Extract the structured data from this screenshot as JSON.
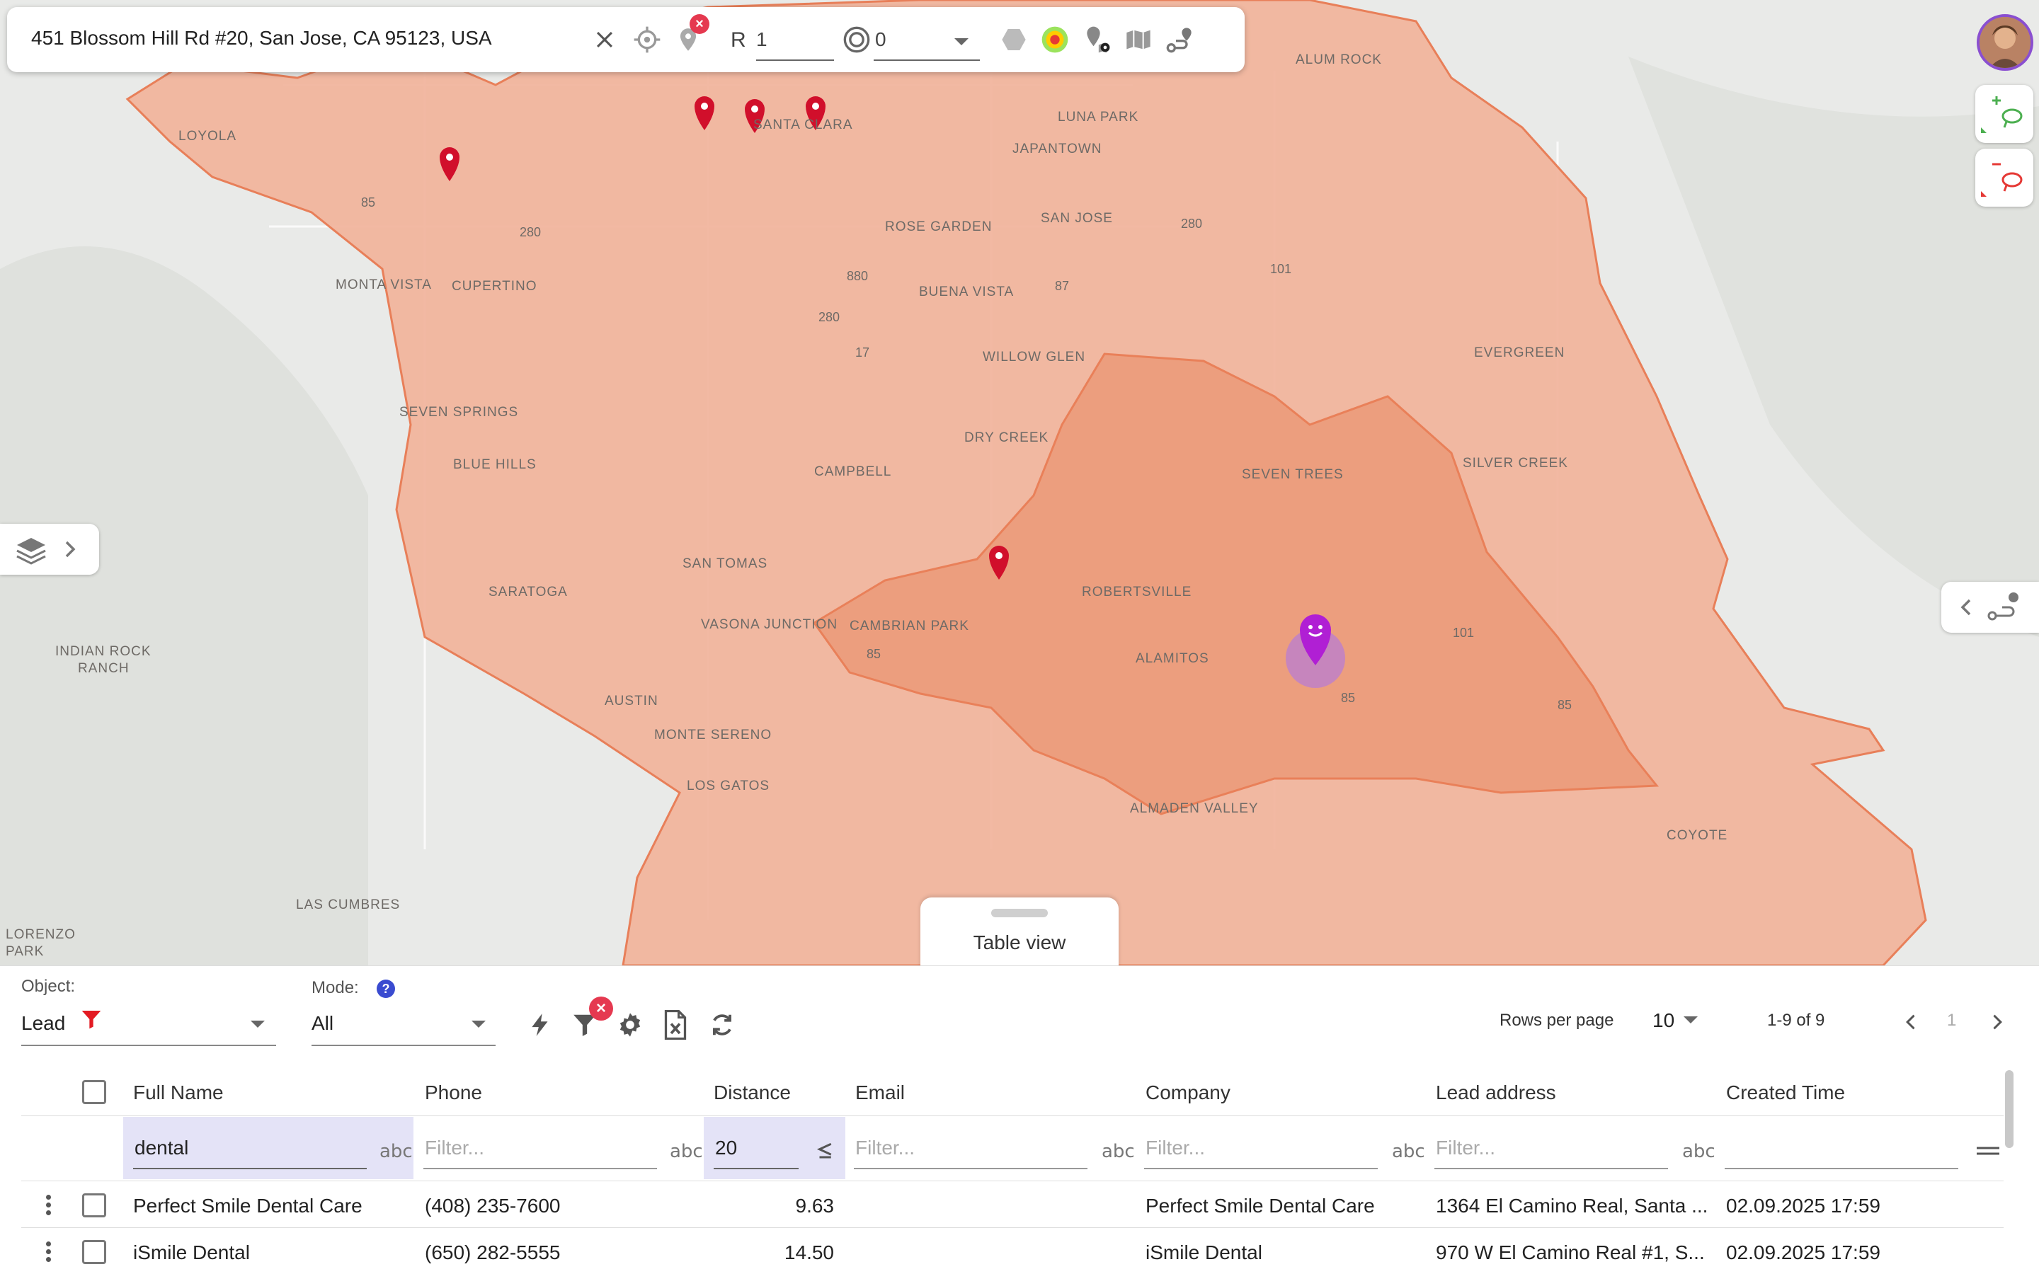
{
  "search": {
    "address": "451 Blossom Hill Rd #20, San Jose, CA 95123, USA",
    "radius_label": "R",
    "radius_value": "1",
    "ring_value": "0"
  },
  "map": {
    "places": [
      {
        "name": "ALUM ROCK"
      },
      {
        "name": "LUNA PARK"
      },
      {
        "name": "JAPANTOWN"
      },
      {
        "name": "LOYOLA"
      },
      {
        "name": "SANTA CLARA"
      },
      {
        "name": "ROSE GARDEN"
      },
      {
        "name": "SAN JOSE"
      },
      {
        "name": "MONTA VISTA"
      },
      {
        "name": "CUPERTINO"
      },
      {
        "name": "BUENA VISTA"
      },
      {
        "name": "WILLOW GLEN"
      },
      {
        "name": "EVERGREEN"
      },
      {
        "name": "SEVEN SPRINGS"
      },
      {
        "name": "DRY CREEK"
      },
      {
        "name": "BLUE HILLS"
      },
      {
        "name": "CAMPBELL"
      },
      {
        "name": "SEVEN TREES"
      },
      {
        "name": "SILVER CREEK"
      },
      {
        "name": "SAN TOMAS"
      },
      {
        "name": "SARATOGA"
      },
      {
        "name": "ROBERTSVILLE"
      },
      {
        "name": "VASONA JUNCTION"
      },
      {
        "name": "CAMBRIAN PARK"
      },
      {
        "name": "ALAMITOS"
      },
      {
        "name": "INDIAN ROCK"
      },
      {
        "name": "RANCH"
      },
      {
        "name": "AUSTIN"
      },
      {
        "name": "MONTE SERENO"
      },
      {
        "name": "LOS GATOS"
      },
      {
        "name": "ALMADEN VALLEY"
      },
      {
        "name": "COYOTE"
      },
      {
        "name": "LAS CUMBRES"
      },
      {
        "name": "LORENZO"
      },
      {
        "name": "PARK"
      }
    ],
    "highways": [
      "85",
      "280",
      "880",
      "87",
      "280",
      "17",
      "101",
      "280",
      "85",
      "101",
      "85",
      "85"
    ],
    "table_view_label": "Table view"
  },
  "toolbar": {
    "object_label": "Object:",
    "object_value": "Lead",
    "mode_label": "Mode:",
    "mode_value": "All",
    "rows_per_page_label": "Rows per page",
    "rows_per_page_value": "10",
    "range_text": "1-9 of 9",
    "page_number": "1"
  },
  "table": {
    "columns": [
      "Full Name",
      "Phone",
      "Distance",
      "Email",
      "Company",
      "Lead address",
      "Created Time"
    ],
    "filters": {
      "full_name": "dental",
      "phone": "Filter...",
      "distance": "20",
      "email": "Filter...",
      "company": "Filter...",
      "lead_address": "Filter...",
      "abc": "abc"
    },
    "rows": [
      {
        "full_name": "Perfect Smile Dental Care",
        "phone": "(408) 235-7600",
        "distance": "9.63",
        "email": "",
        "company": "Perfect Smile Dental Care",
        "lead_address": "1364 El Camino Real, Santa ...",
        "created": "02.09.2025 17:59"
      },
      {
        "full_name": "iSmile Dental",
        "phone": "(650) 282-5555",
        "distance": "14.50",
        "email": "",
        "company": "iSmile Dental",
        "lead_address": "970 W El Camino Real #1, S...",
        "created": "02.09.2025 17:59"
      }
    ]
  },
  "colors": {
    "isochrone_fill": "#f2b49c",
    "isochrone_inner": "#ec9a78",
    "isochrone_stroke": "#e8774d",
    "pin_red": "#d10f2b",
    "pin_purple": "#b01fd4",
    "filter_highlight": "#e4e3f7"
  }
}
